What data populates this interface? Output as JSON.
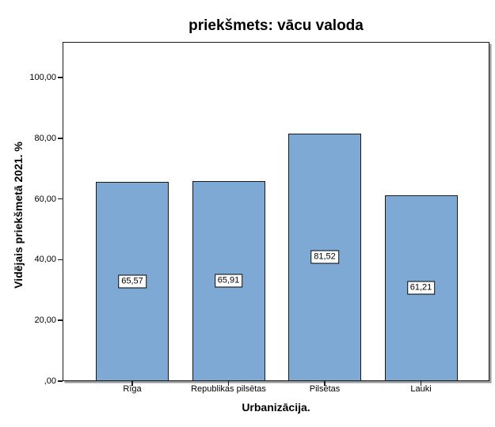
{
  "chart_data": {
    "type": "bar",
    "title": "priekšmets: vācu valoda",
    "xlabel": "Urbanizācija.",
    "ylabel": "Vidējais priekšmetā 2021. %",
    "categories": [
      "Rīga",
      "Republikas pilsētas",
      "Pilsētas",
      "Lauki"
    ],
    "values": [
      65.57,
      65.91,
      81.52,
      61.21
    ],
    "value_labels": [
      "65,57",
      "65,91",
      "81,52",
      "61,21"
    ],
    "yticks": [
      {
        "value": 0,
        "label": ",00"
      },
      {
        "value": 20,
        "label": "20,00"
      },
      {
        "value": 40,
        "label": "40,00"
      },
      {
        "value": 60,
        "label": "60,00"
      },
      {
        "value": 80,
        "label": "80,00"
      },
      {
        "value": 100,
        "label": "100,00"
      }
    ],
    "ylim": [
      0,
      111.7
    ],
    "grid": false,
    "legend_position": "none",
    "bar_color": "#7DA9D4",
    "bar_border_color": "#1a1a1a",
    "value_box_background": "#ffffff",
    "value_box_border_color": "#000000"
  }
}
